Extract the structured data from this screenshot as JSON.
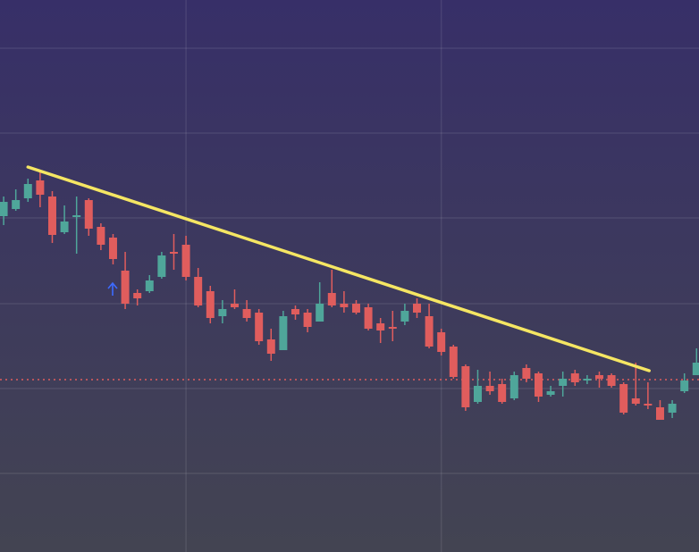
{
  "chart_data": {
    "type": "candlestick",
    "x": [
      0,
      1,
      2,
      3,
      4,
      5,
      6,
      7,
      8,
      9,
      10,
      11,
      12,
      13,
      14,
      15,
      16,
      17,
      18,
      19,
      20,
      21,
      22,
      23,
      24,
      25,
      26,
      27,
      28,
      29,
      30,
      31,
      32,
      33,
      34,
      35,
      36,
      37,
      38,
      39,
      40,
      41,
      42,
      43,
      44,
      45,
      46,
      47,
      48,
      49,
      50,
      51,
      52,
      53,
      54,
      55,
      56,
      57
    ],
    "open": [
      376,
      384,
      396,
      416,
      398,
      358,
      375,
      394,
      364,
      352,
      315,
      290,
      292,
      308,
      336,
      344,
      308,
      292,
      264,
      278,
      272,
      268,
      238,
      226,
      272,
      268,
      258,
      290,
      278,
      278,
      274,
      256,
      252,
      258,
      278,
      264,
      246,
      230,
      208,
      168,
      186,
      188,
      172,
      206,
      200,
      176,
      186,
      200,
      192,
      198,
      198,
      188,
      172,
      166,
      162,
      156,
      180,
      198
    ],
    "high": [
      398,
      406,
      418,
      428,
      404,
      388,
      398,
      396,
      368,
      356,
      336,
      294,
      310,
      336,
      356,
      354,
      318,
      298,
      282,
      294,
      282,
      272,
      250,
      270,
      276,
      272,
      302,
      316,
      292,
      282,
      278,
      262,
      270,
      278,
      284,
      278,
      250,
      232,
      210,
      204,
      202,
      194,
      202,
      210,
      202,
      186,
      202,
      204,
      198,
      202,
      200,
      190,
      212,
      190,
      170,
      170,
      200,
      228
    ],
    "low": [
      366,
      382,
      392,
      386,
      346,
      356,
      334,
      354,
      338,
      322,
      272,
      276,
      290,
      306,
      316,
      304,
      274,
      256,
      256,
      272,
      258,
      232,
      214,
      226,
      260,
      246,
      258,
      274,
      268,
      266,
      248,
      234,
      236,
      254,
      262,
      228,
      220,
      194,
      158,
      166,
      176,
      166,
      170,
      190,
      168,
      174,
      174,
      186,
      188,
      184,
      184,
      154,
      164,
      160,
      148,
      150,
      178,
      198
    ],
    "close": [
      392,
      394,
      412,
      400,
      355,
      370,
      377,
      362,
      344,
      328,
      278,
      284,
      304,
      332,
      334,
      308,
      276,
      262,
      272,
      274,
      262,
      236,
      222,
      264,
      266,
      252,
      278,
      276,
      274,
      268,
      250,
      248,
      250,
      270,
      268,
      230,
      224,
      196,
      162,
      186,
      180,
      168,
      198,
      194,
      174,
      180,
      194,
      190,
      194,
      194,
      186,
      156,
      166,
      164,
      148,
      166,
      192,
      212
    ],
    "up_color": "#4fa69a",
    "down_color": "#e05d5d",
    "xlim": [
      -0.3,
      57.2
    ],
    "xticks": [
      15,
      36
    ],
    "ylim": [
      0,
      618
    ],
    "yticks": [
      88,
      183,
      278,
      374,
      469,
      564
    ],
    "grid": true,
    "trendline": {
      "x": [
        2,
        53.1
      ],
      "y": [
        431,
        203
      ],
      "color": "#f5e663"
    },
    "reference_line": {
      "value": 193,
      "color": "#e05d5d"
    }
  }
}
